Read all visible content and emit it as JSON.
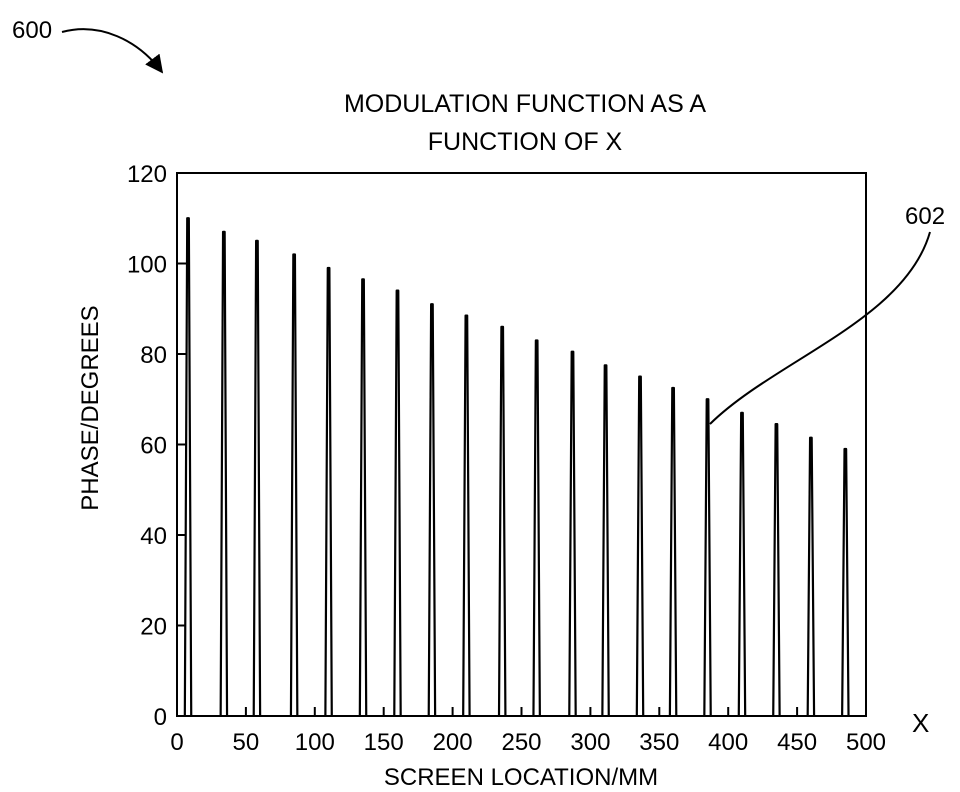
{
  "figure": {
    "ref_label": "600",
    "callout_label": "602",
    "x_axis_symbol": "X"
  },
  "chart_data": {
    "type": "bar",
    "title_lines": [
      "MODULATION FUNCTION AS A",
      "FUNCTION OF X"
    ],
    "title": "MODULATION FUNCTION AS A FUNCTION OF X",
    "xlabel": "SCREEN LOCATION/MM",
    "ylabel": "PHASE/DEGREES",
    "xlim": [
      0,
      500
    ],
    "ylim": [
      0,
      120
    ],
    "xticks": [
      0,
      50,
      100,
      150,
      200,
      250,
      300,
      350,
      400,
      450,
      500
    ],
    "yticks": [
      0,
      20,
      40,
      60,
      80,
      100,
      120
    ],
    "grid": false,
    "legend": "none",
    "x": [
      8,
      34,
      58,
      85,
      110,
      135,
      160,
      185,
      210,
      236,
      261,
      287,
      311,
      336,
      360,
      385,
      410,
      435,
      460,
      485
    ],
    "values": [
      110,
      107,
      105,
      102,
      99,
      96.5,
      94,
      91,
      88.5,
      86,
      83,
      80.5,
      77.5,
      75,
      72.5,
      70,
      67,
      64.5,
      61.5,
      59
    ]
  }
}
